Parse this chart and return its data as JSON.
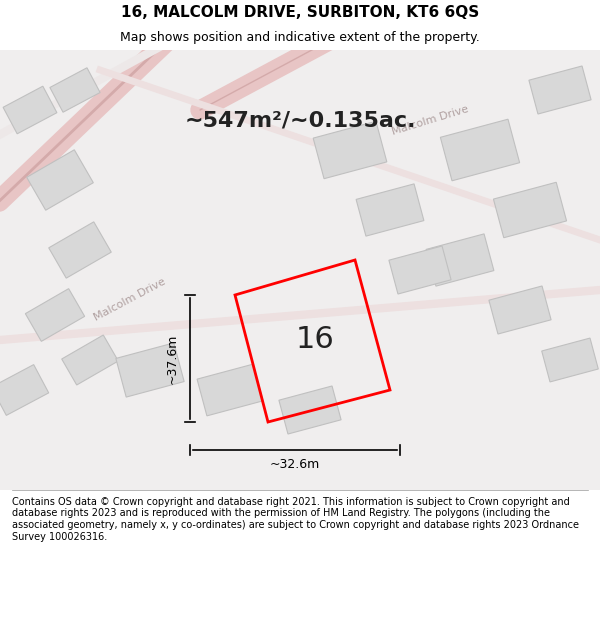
{
  "title": "16, MALCOLM DRIVE, SURBITON, KT6 6QS",
  "subtitle": "Map shows position and indicative extent of the property.",
  "area_text": "~547m²/~0.135ac.",
  "width_label": "~32.6m",
  "height_label": "~37.6m",
  "property_number": "16",
  "footer": "Contains OS data © Crown copyright and database right 2021. This information is subject to Crown copyright and database rights 2023 and is reproduced with the permission of HM Land Registry. The polygons (including the associated geometry, namely x, y co-ordinates) are subject to Crown copyright and database rights 2023 Ordnance Survey 100026316.",
  "bg_color": "#f5f5f5",
  "map_bg": "#f0f0f0",
  "road_color_light": "#e8c8c8",
  "road_color_dark": "#d4a0a0",
  "building_color": "#d8d8d8",
  "building_edge": "#c0c0c0",
  "property_color": "#ff0000",
  "dim_color": "#111111",
  "title_fontsize": 11,
  "subtitle_fontsize": 9,
  "footer_fontsize": 7
}
